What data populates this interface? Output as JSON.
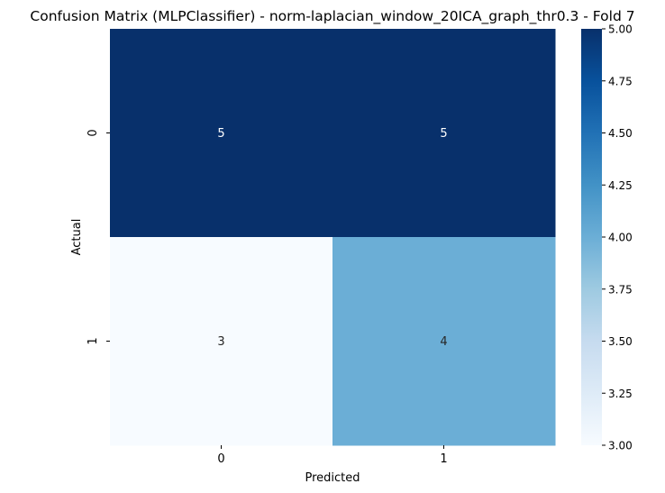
{
  "chart_data": {
    "type": "heatmap",
    "title": "Confusion Matrix (MLPClassifier) - norm-laplacian_window_20ICA_graph_thr0.3 - Fold 7",
    "xlabel": "Predicted",
    "ylabel": "Actual",
    "x_categories": [
      "0",
      "1"
    ],
    "y_categories": [
      "0",
      "1"
    ],
    "values": [
      [
        5,
        5
      ],
      [
        3,
        4
      ]
    ],
    "colormap": "Blues",
    "colorbar": {
      "min": 3.0,
      "max": 5.0,
      "ticks": [
        "3.00",
        "3.25",
        "3.50",
        "3.75",
        "4.00",
        "4.25",
        "4.50",
        "4.75",
        "5.00"
      ]
    },
    "colors": {
      "low": "#f7fbff",
      "high": "#08306b",
      "annotation_light": "#ffffff",
      "annotation_dark": "#262626"
    }
  }
}
